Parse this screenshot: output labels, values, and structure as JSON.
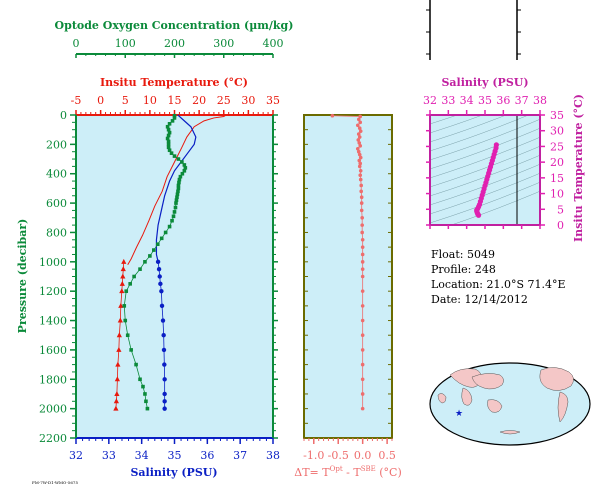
{
  "info": {
    "float": "Float:  5049",
    "profile": "Profile:  248",
    "location": "Location:  21.0°S  71.4°E",
    "date": "Date:  12/14/2012"
  },
  "footer_id": "FM-7W-D1-WMO-5675",
  "colors": {
    "panel_bg": "#cdeef8",
    "temperature": "#e8190d",
    "oxygen": "#0b8a3a",
    "salinity": "#0a1fc4",
    "delta_t": "#ee6d6d",
    "ts_salinity": "#e020b0",
    "olive_frame": "#6b6b00"
  },
  "chart_data": [
    {
      "type": "line",
      "name": "profile-panel",
      "axes": {
        "oxygen": {
          "label": "Optode Oxygen Concentration (µm/kg)",
          "range": [
            0,
            400
          ],
          "ticks": [
            "0",
            "100",
            "200",
            "300",
            "400"
          ]
        },
        "temperature": {
          "label": "Insitu Temperature (°C)",
          "range": [
            -5,
            35
          ],
          "ticks": [
            "-5",
            "0",
            "5",
            "10",
            "15",
            "20",
            "25",
            "30",
            "35"
          ]
        },
        "salinity": {
          "label": "Salinity (PSU)",
          "range": [
            32,
            38
          ],
          "ticks": [
            "32",
            "33",
            "34",
            "35",
            "36",
            "37",
            "38"
          ]
        },
        "pressure": {
          "label": "Pressure (decibar)",
          "range": [
            0,
            2200
          ],
          "reversed": true,
          "ticks": [
            "0",
            "200",
            "400",
            "600",
            "800",
            "1000",
            "1200",
            "1400",
            "1600",
            "1800",
            "2000",
            "2200"
          ]
        }
      },
      "series": [
        {
          "kind": "temperature_line",
          "points": [
            [
              25.5,
              0
            ],
            [
              25,
              10
            ],
            [
              23,
              20
            ],
            [
              21,
              40
            ],
            [
              19,
              80
            ],
            [
              17.5,
              150
            ],
            [
              16.5,
              220
            ],
            [
              15,
              320
            ],
            [
              13.5,
              420
            ],
            [
              12.5,
              520
            ],
            [
              11,
              620
            ],
            [
              9.8,
              720
            ],
            [
              8.5,
              820
            ],
            [
              7.3,
              900
            ],
            [
              6.2,
              980
            ],
            [
              5.5,
              1020
            ]
          ]
        },
        {
          "kind": "temperature_markers",
          "points": [
            [
              4.7,
              1000
            ],
            [
              4.6,
              1050
            ],
            [
              4.5,
              1100
            ],
            [
              4.4,
              1150
            ],
            [
              4.3,
              1200
            ],
            [
              4.1,
              1300
            ],
            [
              4.0,
              1400
            ],
            [
              3.8,
              1500
            ],
            [
              3.7,
              1600
            ],
            [
              3.5,
              1700
            ],
            [
              3.4,
              1800
            ],
            [
              3.3,
              1900
            ],
            [
              3.2,
              1950
            ],
            [
              3.1,
              2000
            ]
          ]
        },
        {
          "kind": "salinity_line",
          "points": [
            [
              35.1,
              0
            ],
            [
              35.15,
              10
            ],
            [
              35.3,
              40
            ],
            [
              35.5,
              80
            ],
            [
              35.65,
              150
            ],
            [
              35.6,
              200
            ],
            [
              35.4,
              260
            ],
            [
              35.2,
              320
            ],
            [
              35.0,
              380
            ],
            [
              34.85,
              450
            ],
            [
              34.7,
              550
            ],
            [
              34.6,
              650
            ],
            [
              34.5,
              750
            ],
            [
              34.45,
              850
            ],
            [
              34.45,
              950
            ],
            [
              34.5,
              1000
            ]
          ]
        },
        {
          "kind": "salinity_markers",
          "points": [
            [
              34.5,
              1000
            ],
            [
              34.53,
              1050
            ],
            [
              34.55,
              1100
            ],
            [
              34.57,
              1150
            ],
            [
              34.6,
              1200
            ],
            [
              34.62,
              1300
            ],
            [
              34.65,
              1400
            ],
            [
              34.67,
              1500
            ],
            [
              34.68,
              1600
            ],
            [
              34.69,
              1700
            ],
            [
              34.7,
              1800
            ],
            [
              34.7,
              1900
            ],
            [
              34.7,
              1950
            ],
            [
              34.7,
              2000
            ]
          ]
        },
        {
          "kind": "oxygen_markers",
          "points": [
            [
              200,
              5
            ],
            [
              200,
              20
            ],
            [
              196,
              40
            ],
            [
              190,
              60
            ],
            [
              186,
              80
            ],
            [
              188,
              100
            ],
            [
              190,
              120
            ],
            [
              188,
              140
            ],
            [
              186,
              160
            ],
            [
              188,
              180
            ],
            [
              188,
              200
            ],
            [
              188,
              220
            ],
            [
              190,
              240
            ],
            [
              194,
              260
            ],
            [
              200,
              280
            ],
            [
              208,
              300
            ],
            [
              215,
              320
            ],
            [
              220,
              340
            ],
            [
              222,
              360
            ],
            [
              220,
              380
            ],
            [
              216,
              400
            ],
            [
              212,
              420
            ],
            [
              210,
              440
            ],
            [
              209,
              460
            ],
            [
              208,
              480
            ],
            [
              208,
              500
            ],
            [
              207,
              520
            ],
            [
              206,
              540
            ],
            [
              205,
              560
            ],
            [
              204,
              580
            ],
            [
              203,
              600
            ],
            [
              202,
              630
            ],
            [
              200,
              660
            ],
            [
              198,
              690
            ],
            [
              195,
              720
            ],
            [
              190,
              760
            ],
            [
              182,
              800
            ],
            [
              174,
              840
            ],
            [
              166,
              880
            ],
            [
              158,
              920
            ],
            [
              150,
              960
            ],
            [
              140,
              1000
            ],
            [
              130,
              1050
            ],
            [
              118,
              1100
            ],
            [
              110,
              1150
            ],
            [
              102,
              1200
            ],
            [
              98,
              1300
            ],
            [
              100,
              1400
            ],
            [
              105,
              1500
            ],
            [
              112,
              1600
            ],
            [
              122,
              1700
            ],
            [
              130,
              1800
            ],
            [
              136,
              1850
            ],
            [
              140,
              1900
            ],
            [
              142,
              1950
            ],
            [
              145,
              2000
            ]
          ]
        }
      ]
    },
    {
      "type": "scatter",
      "name": "delta-t-panel",
      "xlabel": "ΔT= T",
      "xlabel_sup1": "Opt",
      "xlabel_mid": " - T",
      "xlabel_sup2": "SBE",
      "xlabel_end": " (°C)",
      "xlim": [
        -1.2,
        0.6
      ],
      "ylim": [
        0,
        2200
      ],
      "ticks": [
        "-1.0",
        "-0.5",
        "0.0",
        "0.5"
      ],
      "points": [
        [
          -0.62,
          5
        ],
        [
          -0.05,
          10
        ],
        [
          -0.08,
          30
        ],
        [
          -0.05,
          50
        ],
        [
          -0.1,
          70
        ],
        [
          -0.06,
          90
        ],
        [
          -0.04,
          110
        ],
        [
          -0.08,
          130
        ],
        [
          -0.06,
          150
        ],
        [
          -0.09,
          170
        ],
        [
          -0.07,
          190
        ],
        [
          -0.05,
          210
        ],
        [
          -0.1,
          230
        ],
        [
          -0.08,
          250
        ],
        [
          -0.06,
          270
        ],
        [
          -0.04,
          290
        ],
        [
          -0.07,
          310
        ],
        [
          -0.05,
          330
        ],
        [
          -0.06,
          350
        ],
        [
          -0.04,
          380
        ],
        [
          -0.05,
          410
        ],
        [
          -0.04,
          440
        ],
        [
          -0.03,
          480
        ],
        [
          -0.03,
          520
        ],
        [
          -0.02,
          560
        ],
        [
          -0.02,
          600
        ],
        [
          -0.02,
          650
        ],
        [
          -0.01,
          700
        ],
        [
          -0.01,
          750
        ],
        [
          -0.01,
          800
        ],
        [
          0.0,
          850
        ],
        [
          0.0,
          900
        ],
        [
          0.0,
          950
        ],
        [
          0.0,
          1000
        ],
        [
          0.0,
          1050
        ],
        [
          0.0,
          1100
        ],
        [
          0.0,
          1200
        ],
        [
          0.0,
          1300
        ],
        [
          0.0,
          1400
        ],
        [
          0.0,
          1500
        ],
        [
          0.0,
          1600
        ],
        [
          0.0,
          1700
        ],
        [
          0.0,
          1800
        ],
        [
          0.0,
          1900
        ],
        [
          0.0,
          2000
        ]
      ]
    },
    {
      "type": "scatter",
      "name": "ts-diagram",
      "xlabel": "Salinity (PSU)",
      "ylabel": "Insitu Temperature (°C)",
      "xlim": [
        32,
        38
      ],
      "ylim": [
        0,
        35
      ],
      "xticks": [
        "32",
        "33",
        "34",
        "35",
        "36",
        "37",
        "38"
      ],
      "yticks": [
        "0",
        "5",
        "10",
        "15",
        "20",
        "25",
        "30",
        "35"
      ],
      "points": [
        [
          35.62,
          25.5
        ],
        [
          35.6,
          24.5
        ],
        [
          35.55,
          23.5
        ],
        [
          35.5,
          22.5
        ],
        [
          35.45,
          21.5
        ],
        [
          35.4,
          20.5
        ],
        [
          35.35,
          19.5
        ],
        [
          35.3,
          18.5
        ],
        [
          35.25,
          17.5
        ],
        [
          35.2,
          16.5
        ],
        [
          35.15,
          15.5
        ],
        [
          35.1,
          14.5
        ],
        [
          35.05,
          13.5
        ],
        [
          35.0,
          12.5
        ],
        [
          34.95,
          11.5
        ],
        [
          34.9,
          10.5
        ],
        [
          34.85,
          9.5
        ],
        [
          34.8,
          8.5
        ],
        [
          34.75,
          7.5
        ],
        [
          34.7,
          6.5
        ],
        [
          34.65,
          5.8
        ],
        [
          34.6,
          5.2
        ],
        [
          34.55,
          4.8
        ],
        [
          34.55,
          4.4
        ],
        [
          34.57,
          4.0
        ],
        [
          34.6,
          3.6
        ],
        [
          34.62,
          3.3
        ],
        [
          34.65,
          3.1
        ]
      ]
    }
  ]
}
